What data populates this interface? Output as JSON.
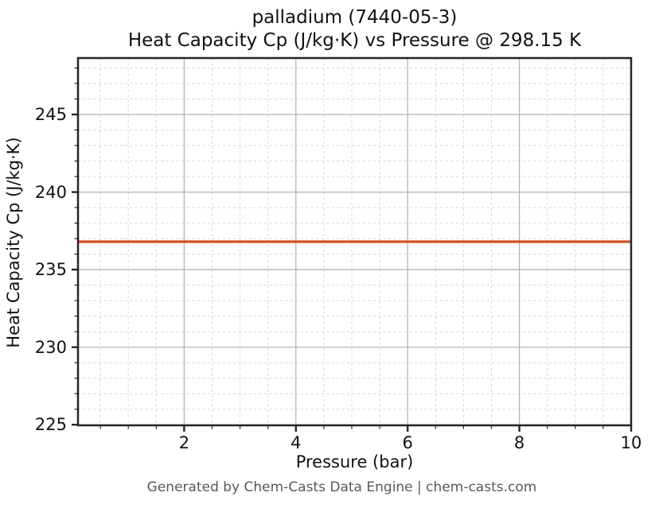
{
  "title": {
    "line1": "palladium (7440-05-3)",
    "line2": "Heat Capacity Cp (J/kg·K) vs Pressure @ 298.15 K"
  },
  "axes": {
    "xlabel": "Pressure (bar)",
    "ylabel": "Heat Capacity Cp (J/kg·K)"
  },
  "footer": {
    "text": "Generated by Chem-Casts Data Engine | chem-casts.com"
  },
  "colors": {
    "spine": "#262626",
    "tick": "#262626",
    "major_grid": "#b0b0b0",
    "minor_grid": "#d9d9d9",
    "text": "#111111",
    "footer_text": "#595959",
    "line": "#d0501e"
  },
  "chart_data": {
    "type": "line",
    "title": "palladium (7440-05-3)",
    "subtitle": "Heat Capacity Cp (J/kg·K) vs Pressure @ 298.15 K",
    "xlabel": "Pressure (bar)",
    "ylabel": "Heat Capacity Cp (J/kg·K)",
    "xlim": [
      0.1,
      10
    ],
    "ylim": [
      224.96,
      248.64
    ],
    "x_major_ticks": [
      2,
      4,
      6,
      8,
      10
    ],
    "x_minor_interval": 0.5,
    "y_major_ticks": [
      225,
      230,
      235,
      240,
      245
    ],
    "y_minor_interval": 1,
    "grid": {
      "major": "solid",
      "minor": "dashed"
    },
    "legend": "none",
    "series": [
      {
        "name": "Heat Capacity Cp",
        "color": "#d0501e",
        "line_width": 3.2,
        "x": [
          0.1,
          10
        ],
        "y": [
          236.8,
          236.8
        ],
        "note": "constant value 236.8 J/kg·K across full pressure range"
      }
    ]
  }
}
